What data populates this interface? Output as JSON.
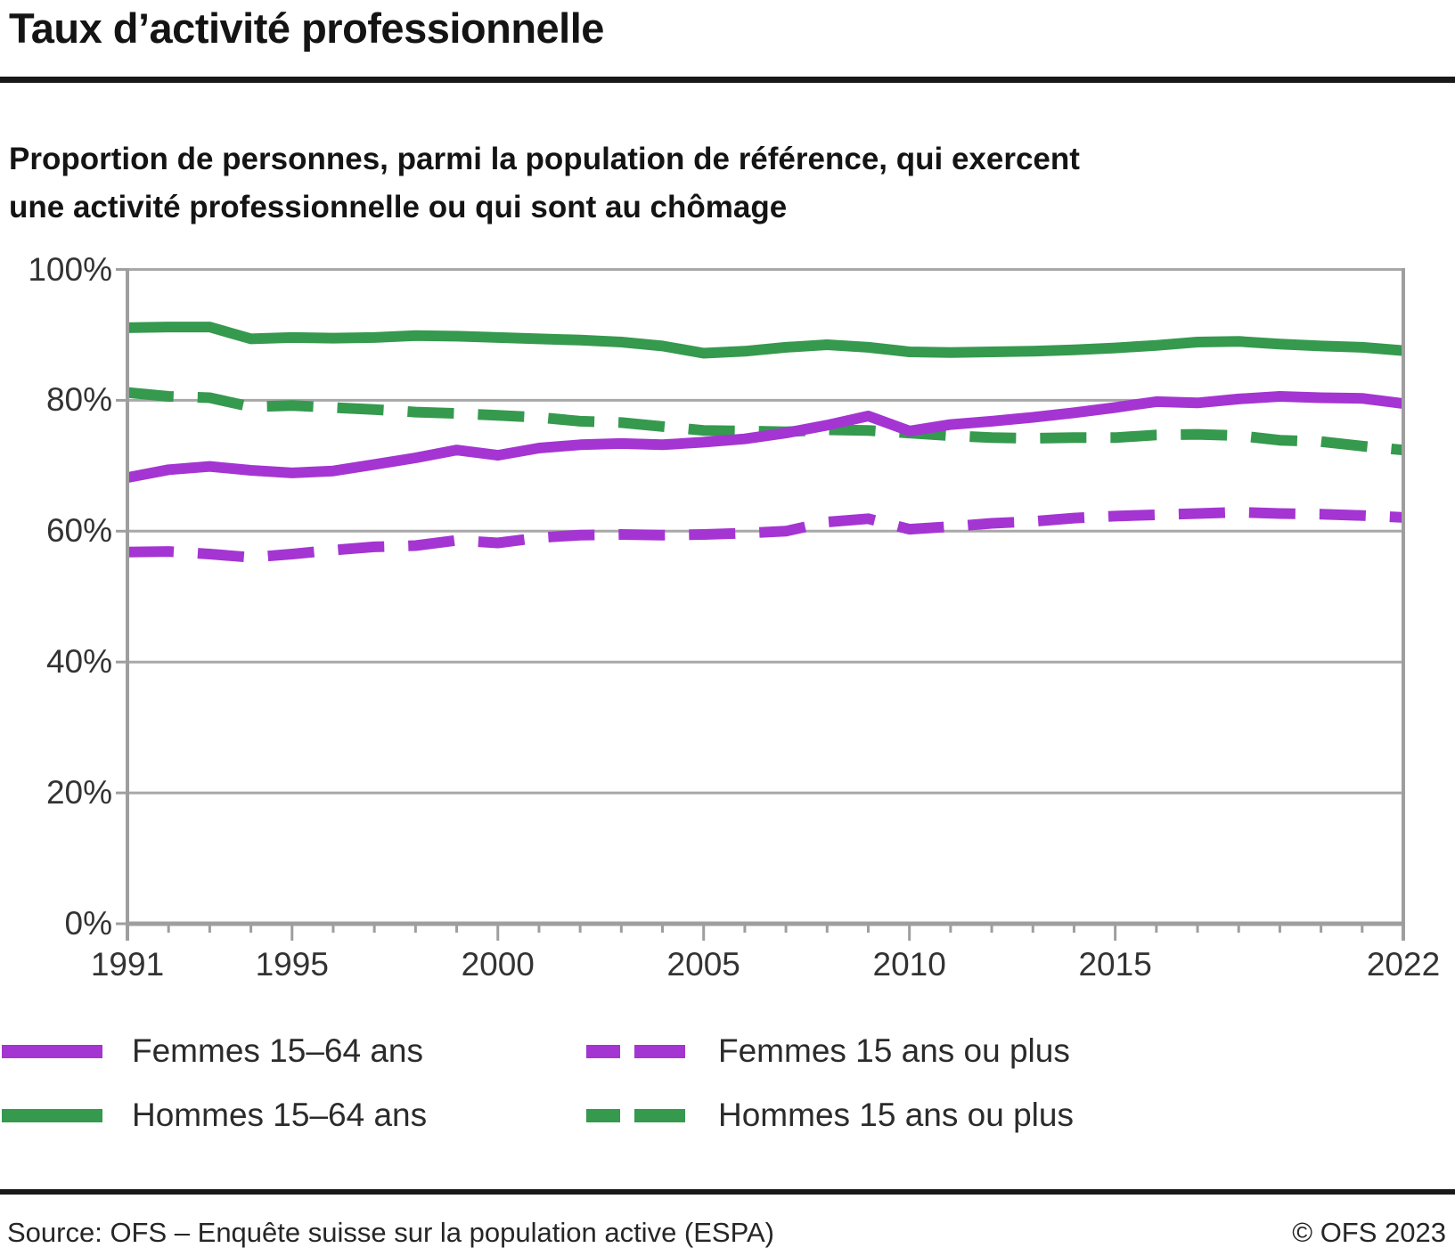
{
  "title": "Taux d’activité professionnelle",
  "subtitle_line1": "Proportion de personnes, parmi la population de référence, qui exercent",
  "subtitle_line2": "une activité professionnelle ou qui sont au chômage",
  "colors": {
    "women": "#A435D2",
    "men": "#35994E",
    "gridline": "#A8A8A8",
    "frame": "#9E9E9E",
    "rule": "#191919"
  },
  "chart_data": {
    "type": "line",
    "title": "Taux d’activité professionnelle",
    "xlabel": "",
    "ylabel": "",
    "ylim": [
      0,
      100
    ],
    "grid": "horizontal-20pct",
    "legend_position": "below",
    "x": [
      1991,
      1992,
      1993,
      1994,
      1995,
      1996,
      1997,
      1998,
      1999,
      2000,
      2001,
      2002,
      2003,
      2004,
      2005,
      2006,
      2007,
      2008,
      2009,
      2010,
      2011,
      2012,
      2013,
      2014,
      2015,
      2016,
      2017,
      2018,
      2019,
      2020,
      2021,
      2022
    ],
    "x_tick_years": [
      1991,
      1995,
      2000,
      2005,
      2010,
      2015,
      2022
    ],
    "x_tick_labels": [
      "1991",
      "1995",
      "2000",
      "2005",
      "2010",
      "2015",
      "2022"
    ],
    "y_tick_values": [
      100,
      80,
      60,
      40,
      20,
      0
    ],
    "y_tick_labels": [
      "100%",
      "80%",
      "60%",
      "40%",
      "20%",
      "0%"
    ],
    "series": [
      {
        "name": "Femmes 15–64 ans",
        "style": "solid",
        "color": "#A435D2",
        "values": [
          68.2,
          69.4,
          69.9,
          69.3,
          68.9,
          69.2,
          70.2,
          71.2,
          72.4,
          71.6,
          72.7,
          73.2,
          73.4,
          73.2,
          73.6,
          74.1,
          75.0,
          76.2,
          77.6,
          75.3,
          76.3,
          76.8,
          77.4,
          78.1,
          78.9,
          79.8,
          79.6,
          80.2,
          80.6,
          80.4,
          80.3,
          79.5
        ]
      },
      {
        "name": "Femmes 15 ans ou plus",
        "style": "dashed",
        "color": "#A435D2",
        "values": [
          56.8,
          56.9,
          56.5,
          56.0,
          56.5,
          57.1,
          57.6,
          57.8,
          58.6,
          58.2,
          59.0,
          59.4,
          59.5,
          59.4,
          59.5,
          59.7,
          60.0,
          61.4,
          61.9,
          60.3,
          60.7,
          61.2,
          61.5,
          62.0,
          62.3,
          62.5,
          62.7,
          62.9,
          62.7,
          62.6,
          62.4,
          62.1
        ]
      },
      {
        "name": "Hommes 15–64 ans",
        "style": "solid",
        "color": "#35994E",
        "values": [
          91.1,
          91.2,
          91.2,
          89.4,
          89.6,
          89.5,
          89.6,
          89.9,
          89.8,
          89.6,
          89.4,
          89.2,
          88.9,
          88.3,
          87.2,
          87.5,
          88.1,
          88.5,
          88.1,
          87.4,
          87.3,
          87.4,
          87.5,
          87.7,
          88.0,
          88.4,
          88.9,
          89.0,
          88.6,
          88.3,
          88.1,
          87.6
        ]
      },
      {
        "name": "Hommes 15 ans ou plus",
        "style": "dashed",
        "color": "#35994E",
        "values": [
          81.2,
          80.6,
          80.4,
          79.0,
          79.2,
          78.9,
          78.6,
          78.2,
          78.0,
          77.7,
          77.4,
          76.8,
          76.6,
          76.0,
          75.4,
          75.3,
          75.2,
          75.5,
          75.4,
          75.0,
          74.6,
          74.3,
          74.2,
          74.3,
          74.3,
          74.7,
          74.8,
          74.6,
          73.9,
          73.7,
          73.0,
          72.4
        ]
      }
    ]
  },
  "legend": {
    "items": [
      {
        "label": "Femmes 15–64 ans",
        "color": "#A435D2",
        "dash": false
      },
      {
        "label": "Femmes 15 ans ou plus",
        "color": "#A435D2",
        "dash": true
      },
      {
        "label": "Hommes 15–64 ans",
        "color": "#35994E",
        "dash": false
      },
      {
        "label": "Hommes 15 ans ou plus",
        "color": "#35994E",
        "dash": true
      }
    ]
  },
  "footer": {
    "source": "Source: OFS – Enquête suisse sur la population active (ESPA)",
    "copyright": "© OFS 2023"
  }
}
